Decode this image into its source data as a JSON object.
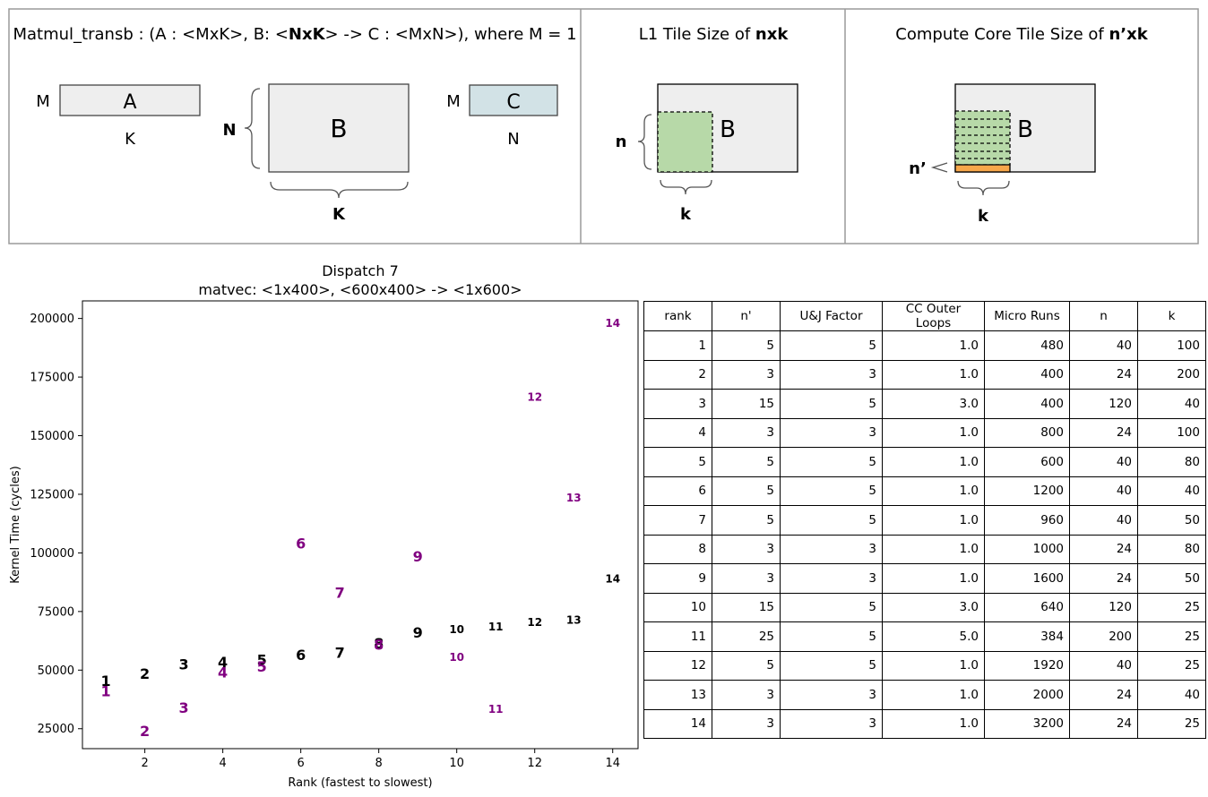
{
  "diagram": {
    "panel1": {
      "title_prefix": "Matmul_transb : (A : <MxK>, B: <",
      "title_bold": "NxK",
      "title_suffix": "> -> C : <MxN>), where M = 1",
      "label_M_a": "M",
      "label_A": "A",
      "label_K_a": "K",
      "label_N": "N",
      "label_B": "B",
      "label_K": "K",
      "label_M_c": "M",
      "label_C": "C",
      "label_N_c": "N"
    },
    "panel2": {
      "title_prefix": "L1 Tile Size of ",
      "title_bold": "nxk",
      "label_n": "n",
      "label_B": "B",
      "label_k": "k"
    },
    "panel3": {
      "title_prefix": "Compute Core Tile Size of ",
      "title_bold": "n’xk",
      "label_nprime": "n’",
      "label_B": "B",
      "label_k": "k"
    },
    "colors": {
      "matrix_fill": "#eeeeee",
      "c_fill": "#d2e2e6",
      "tile_fill": "#b7d9a8",
      "core_fill": "#f7a74a"
    }
  },
  "chart_data": {
    "type": "scatter",
    "title": "Dispatch 7",
    "subtitle": "matvec: <1x400>, <600x400> -> <1x600>",
    "xlabel": "Rank (fastest to slowest)",
    "ylabel": "Kernel Time (cycles)",
    "xlim": [
      0.4,
      14.65
    ],
    "ylim": [
      16500,
      207500
    ],
    "xticks": [
      2,
      4,
      6,
      8,
      10,
      12,
      14
    ],
    "yticks": [
      25000,
      50000,
      75000,
      100000,
      125000,
      150000,
      175000,
      200000
    ],
    "series": [
      {
        "color": "#000000",
        "points": [
          {
            "label": "1",
            "x": 1,
            "y": 45500
          },
          {
            "label": "2",
            "x": 2,
            "y": 48500
          },
          {
            "label": "3",
            "x": 3,
            "y": 52500
          },
          {
            "label": "4",
            "x": 4,
            "y": 53500
          },
          {
            "label": "5",
            "x": 5,
            "y": 54500
          },
          {
            "label": "6",
            "x": 6,
            "y": 56500
          },
          {
            "label": "7",
            "x": 7,
            "y": 57500
          },
          {
            "label": "8",
            "x": 8,
            "y": 61500
          },
          {
            "label": "9",
            "x": 9,
            "y": 66000
          },
          {
            "label": "10",
            "x": 10,
            "y": 67500
          },
          {
            "label": "11",
            "x": 11,
            "y": 68500
          },
          {
            "label": "12",
            "x": 12,
            "y": 70500
          },
          {
            "label": "13",
            "x": 13,
            "y": 71500
          },
          {
            "label": "14",
            "x": 14,
            "y": 89000
          }
        ]
      },
      {
        "color": "#800080",
        "points": [
          {
            "label": "1",
            "x": 1,
            "y": 41000
          },
          {
            "label": "2",
            "x": 2,
            "y": 24000
          },
          {
            "label": "3",
            "x": 3,
            "y": 34000
          },
          {
            "label": "4",
            "x": 4,
            "y": 49000
          },
          {
            "label": "5",
            "x": 5,
            "y": 51500
          },
          {
            "label": "6",
            "x": 6,
            "y": 104000
          },
          {
            "label": "7",
            "x": 7,
            "y": 83000
          },
          {
            "label": "8",
            "x": 8,
            "y": 61000
          },
          {
            "label": "9",
            "x": 9,
            "y": 98500
          },
          {
            "label": "10",
            "x": 10,
            "y": 55500
          },
          {
            "label": "11",
            "x": 11,
            "y": 33500
          },
          {
            "label": "12",
            "x": 12,
            "y": 166500
          },
          {
            "label": "13",
            "x": 13,
            "y": 123500
          },
          {
            "label": "14",
            "x": 14,
            "y": 198000
          }
        ]
      }
    ]
  },
  "table": {
    "headers": [
      "rank",
      "n'",
      "U&J Factor",
      "CC Outer Loops",
      "Micro Runs",
      "n",
      "k"
    ],
    "rows": [
      [
        "1",
        "5",
        "5",
        "1.0",
        "480",
        "40",
        "100"
      ],
      [
        "2",
        "3",
        "3",
        "1.0",
        "400",
        "24",
        "200"
      ],
      [
        "3",
        "15",
        "5",
        "3.0",
        "400",
        "120",
        "40"
      ],
      [
        "4",
        "3",
        "3",
        "1.0",
        "800",
        "24",
        "100"
      ],
      [
        "5",
        "5",
        "5",
        "1.0",
        "600",
        "40",
        "80"
      ],
      [
        "6",
        "5",
        "5",
        "1.0",
        "1200",
        "40",
        "40"
      ],
      [
        "7",
        "5",
        "5",
        "1.0",
        "960",
        "40",
        "50"
      ],
      [
        "8",
        "3",
        "3",
        "1.0",
        "1000",
        "24",
        "80"
      ],
      [
        "9",
        "3",
        "3",
        "1.0",
        "1600",
        "24",
        "50"
      ],
      [
        "10",
        "15",
        "5",
        "3.0",
        "640",
        "120",
        "25"
      ],
      [
        "11",
        "25",
        "5",
        "5.0",
        "384",
        "200",
        "25"
      ],
      [
        "12",
        "5",
        "5",
        "1.0",
        "1920",
        "40",
        "25"
      ],
      [
        "13",
        "3",
        "3",
        "1.0",
        "2000",
        "24",
        "40"
      ],
      [
        "14",
        "3",
        "3",
        "1.0",
        "3200",
        "24",
        "25"
      ]
    ]
  }
}
